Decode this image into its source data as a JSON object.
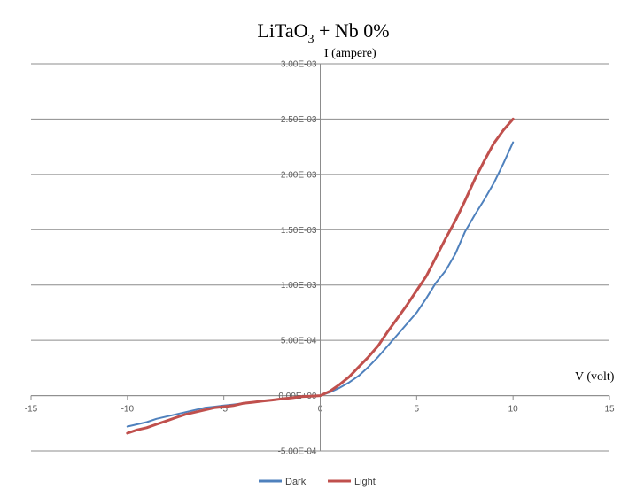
{
  "chart_data": {
    "type": "line",
    "title": "LiTaO",
    "title_subscript": "3",
    "title_suffix": " + Nb 0%",
    "xlabel": "V (volt)",
    "ylabel": "I (ampere)",
    "xlim": [
      -15,
      15
    ],
    "ylim": [
      -0.0005,
      0.003
    ],
    "x_ticks": [
      "-15",
      "-10",
      "-5",
      "0",
      "5",
      "10",
      "15"
    ],
    "x_tick_values": [
      -15,
      -10,
      -5,
      0,
      5,
      10,
      15
    ],
    "y_ticks": [
      "3.00E-03",
      "2.50E-03",
      "2.00E-03",
      "1.50E-03",
      "1.00E-03",
      "5.00E-04",
      "0.00E+00",
      "-5.00E-04"
    ],
    "y_tick_values": [
      0.003,
      0.0025,
      0.002,
      0.0015,
      0.001,
      0.0005,
      0,
      -0.0005
    ],
    "grid": true,
    "legend_position": "bottom",
    "series": [
      {
        "name": "Dark",
        "color": "#4f81bd",
        "x": [
          -10,
          -9.5,
          -9,
          -8.5,
          -8,
          -7.5,
          -7,
          -6.5,
          -6,
          -5.5,
          -5,
          -4.5,
          -4,
          -3.5,
          -3,
          -2.5,
          -2,
          -1.5,
          -1,
          -0.5,
          0,
          0.5,
          1,
          1.5,
          2,
          2.5,
          3,
          3.5,
          4,
          4.5,
          5,
          5.5,
          6,
          6.5,
          7,
          7.5,
          8,
          8.5,
          9,
          9.5,
          10
        ],
        "y": [
          -0.00028,
          -0.00026,
          -0.00024,
          -0.00021,
          -0.00019,
          -0.00017,
          -0.00015,
          -0.00013,
          -0.00011,
          -0.0001,
          -9e-05,
          -8e-05,
          -7e-05,
          -6e-05,
          -5e-05,
          -4e-05,
          -3e-05,
          -2e-05,
          -1e-05,
          -5e-06,
          0,
          3e-05,
          7e-05,
          0.00012,
          0.00018,
          0.00026,
          0.00035,
          0.00045,
          0.00055,
          0.00065,
          0.00075,
          0.00088,
          0.00102,
          0.00113,
          0.00128,
          0.00148,
          0.00163,
          0.00177,
          0.00192,
          0.0021,
          0.00229
        ]
      },
      {
        "name": "Light",
        "color": "#c0504d",
        "x": [
          -10,
          -9.5,
          -9,
          -8.5,
          -8,
          -7.5,
          -7,
          -6.5,
          -6,
          -5.5,
          -5,
          -4.5,
          -4,
          -3.5,
          -3,
          -2.5,
          -2,
          -1.5,
          -1,
          -0.5,
          0,
          0.5,
          1,
          1.5,
          2,
          2.5,
          3,
          3.5,
          4,
          4.5,
          5,
          5.5,
          6,
          6.5,
          7,
          7.5,
          8,
          8.5,
          9,
          9.5,
          10
        ],
        "y": [
          -0.00034,
          -0.00031,
          -0.00029,
          -0.00026,
          -0.00023,
          -0.0002,
          -0.00017,
          -0.00015,
          -0.00013,
          -0.00011,
          -0.0001,
          -9e-05,
          -7e-05,
          -6e-05,
          -5e-05,
          -4e-05,
          -3e-05,
          -2e-05,
          -1e-05,
          -5e-06,
          0,
          4e-05,
          0.0001,
          0.00017,
          0.00026,
          0.00035,
          0.00045,
          0.00058,
          0.0007,
          0.00082,
          0.00095,
          0.00108,
          0.00125,
          0.00142,
          0.00158,
          0.00176,
          0.00195,
          0.00212,
          0.00228,
          0.0024,
          0.0025
        ]
      }
    ]
  }
}
